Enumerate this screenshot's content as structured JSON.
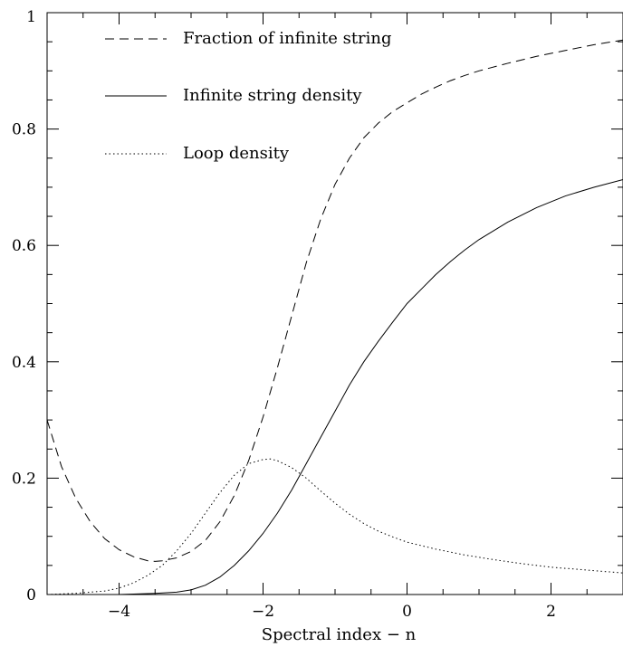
{
  "chart_data": {
    "type": "line",
    "xlabel": "Spectral index − n",
    "ylabel": "",
    "xlim": [
      -5,
      3
    ],
    "ylim": [
      0,
      1
    ],
    "grid": false,
    "legend_placement": "top-left",
    "x_ticks": [
      {
        "value": -4,
        "label": "−4"
      },
      {
        "value": -2,
        "label": "−2"
      },
      {
        "value": 0,
        "label": "0"
      },
      {
        "value": 2,
        "label": "2"
      }
    ],
    "y_ticks": [
      {
        "value": 0,
        "label": "0"
      },
      {
        "value": 0.2,
        "label": "0.2"
      },
      {
        "value": 0.4,
        "label": "0.4"
      },
      {
        "value": 0.6,
        "label": "0.6"
      },
      {
        "value": 0.8,
        "label": "0.8"
      },
      {
        "value": 1,
        "label": "1"
      }
    ],
    "x_minor_step": 0.5,
    "y_minor_step": 0.05,
    "series": [
      {
        "name": "Fraction of infinite string",
        "style": "dashed",
        "color": "#000000",
        "x": [
          -5.0,
          -4.8,
          -4.6,
          -4.4,
          -4.2,
          -4.0,
          -3.8,
          -3.6,
          -3.5,
          -3.4,
          -3.2,
          -3.0,
          -2.8,
          -2.6,
          -2.4,
          -2.2,
          -2.0,
          -1.8,
          -1.6,
          -1.4,
          -1.2,
          -1.0,
          -0.8,
          -0.6,
          -0.4,
          -0.2,
          0.0,
          0.2,
          0.4,
          0.6,
          0.8,
          1.0,
          1.4,
          1.8,
          2.2,
          2.6,
          3.0
        ],
        "y": [
          0.3,
          0.22,
          0.165,
          0.125,
          0.096,
          0.077,
          0.065,
          0.058,
          0.057,
          0.058,
          0.063,
          0.074,
          0.093,
          0.125,
          0.17,
          0.23,
          0.305,
          0.39,
          0.48,
          0.57,
          0.645,
          0.705,
          0.75,
          0.785,
          0.81,
          0.83,
          0.845,
          0.86,
          0.872,
          0.883,
          0.892,
          0.9,
          0.913,
          0.925,
          0.935,
          0.945,
          0.953
        ]
      },
      {
        "name": "Infinite string density",
        "style": "solid",
        "color": "#000000",
        "x": [
          -5.0,
          -4.5,
          -4.0,
          -3.5,
          -3.2,
          -3.0,
          -2.8,
          -2.6,
          -2.4,
          -2.2,
          -2.0,
          -1.8,
          -1.6,
          -1.4,
          -1.2,
          -1.0,
          -0.8,
          -0.6,
          -0.4,
          -0.2,
          0.0,
          0.2,
          0.4,
          0.6,
          0.8,
          1.0,
          1.4,
          1.8,
          2.2,
          2.6,
          3.0
        ],
        "y": [
          0.0,
          0.0,
          0.0,
          0.002,
          0.004,
          0.008,
          0.016,
          0.03,
          0.05,
          0.075,
          0.105,
          0.14,
          0.18,
          0.225,
          0.27,
          0.315,
          0.36,
          0.4,
          0.435,
          0.468,
          0.5,
          0.525,
          0.55,
          0.572,
          0.592,
          0.61,
          0.64,
          0.665,
          0.685,
          0.7,
          0.713
        ]
      },
      {
        "name": "Loop density",
        "style": "dotted",
        "color": "#000000",
        "x": [
          -5.0,
          -4.6,
          -4.2,
          -4.0,
          -3.8,
          -3.6,
          -3.4,
          -3.2,
          -3.0,
          -2.8,
          -2.6,
          -2.4,
          -2.2,
          -2.0,
          -1.9,
          -1.8,
          -1.6,
          -1.4,
          -1.2,
          -1.0,
          -0.8,
          -0.6,
          -0.4,
          -0.2,
          0.0,
          0.4,
          0.8,
          1.2,
          1.6,
          2.0,
          2.4,
          3.0
        ],
        "y": [
          0.0,
          0.002,
          0.006,
          0.011,
          0.02,
          0.033,
          0.05,
          0.075,
          0.105,
          0.14,
          0.175,
          0.205,
          0.225,
          0.232,
          0.233,
          0.23,
          0.218,
          0.2,
          0.178,
          0.157,
          0.138,
          0.122,
          0.109,
          0.099,
          0.09,
          0.078,
          0.068,
          0.06,
          0.053,
          0.047,
          0.043,
          0.037
        ]
      }
    ]
  }
}
